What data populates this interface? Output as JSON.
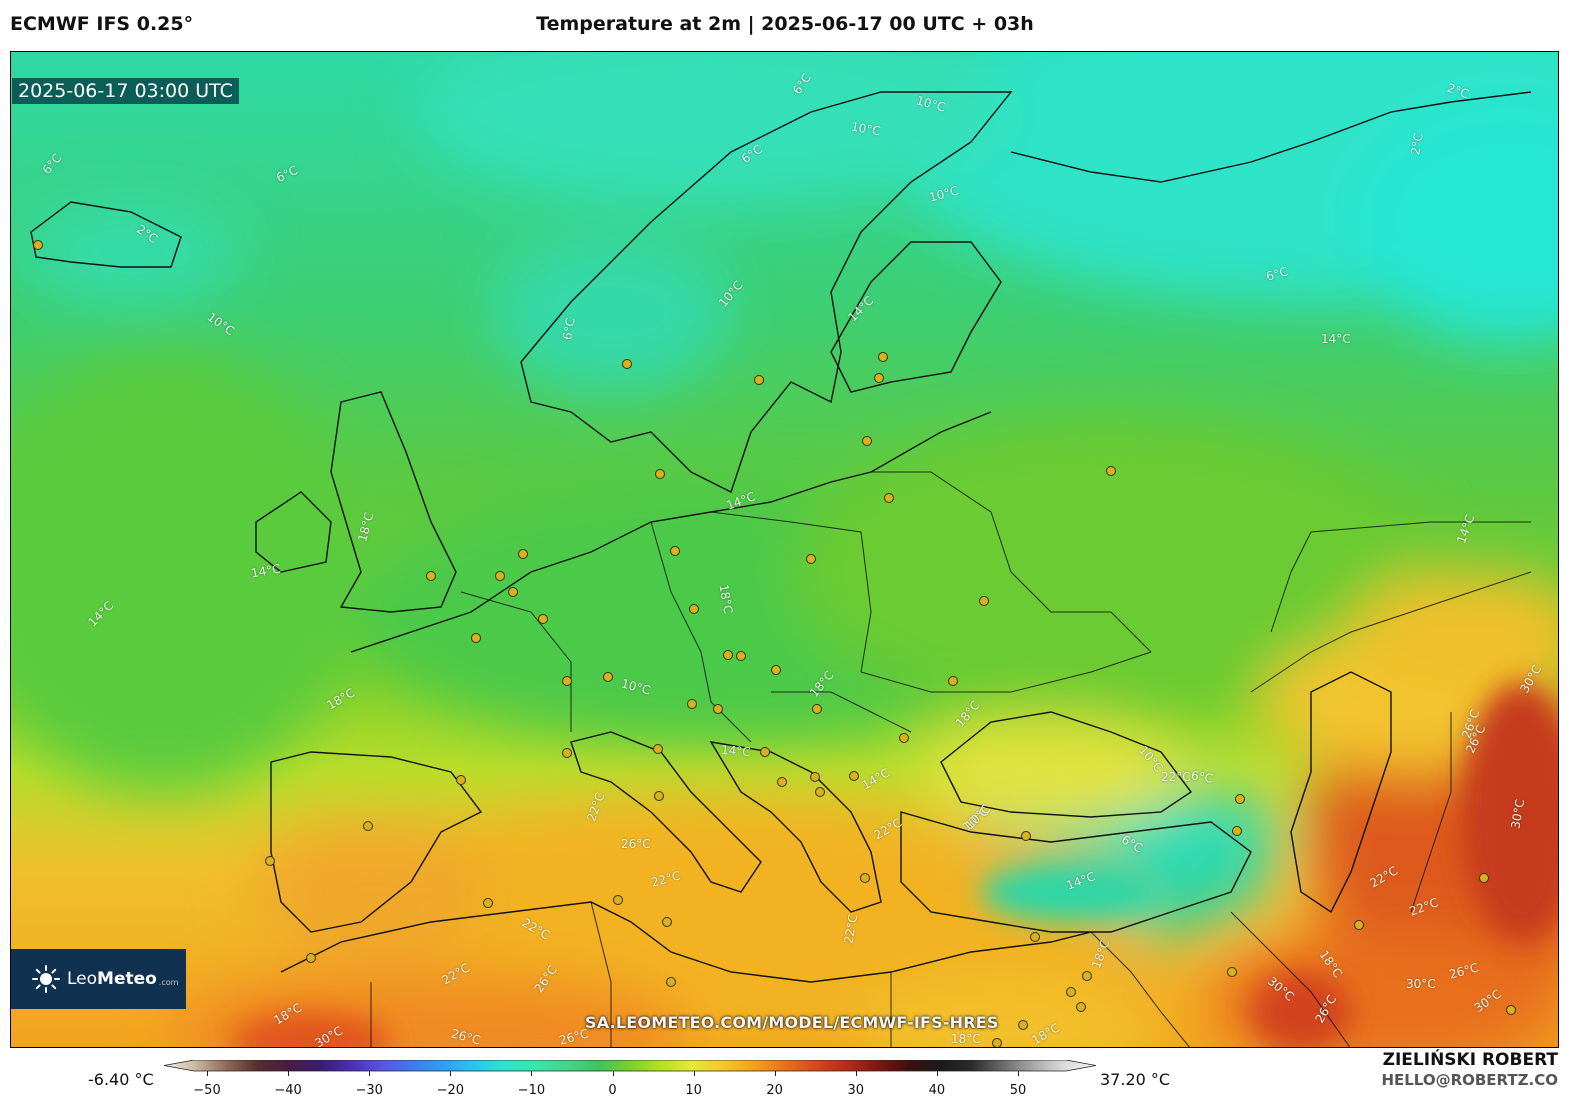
{
  "header": {
    "model": "ECMWF IFS 0.25°",
    "title": "Temperature at 2m | 2025-06-17 00 UTC + 03h"
  },
  "map": {
    "valid_time": "2025-06-17 03:00 UTC",
    "watermark": "SA.LEOMETEO.COM/MODEL/ECMWF-IFS-HRES",
    "contour_labels": [
      "6°C",
      "6°C",
      "2°C",
      "10°C",
      "10°C",
      "10°C",
      "6°C",
      "2°C",
      "2°C",
      "6°C",
      "6°C",
      "10°C",
      "10°C",
      "6°C",
      "14°C",
      "14°C",
      "14°C",
      "14°C",
      "18°C",
      "14°C",
      "10°C",
      "18°C",
      "18°C",
      "10°C",
      "6°C",
      "10°C",
      "14°C",
      "14°C",
      "18°C",
      "18°C",
      "22°C",
      "26°C",
      "22°C",
      "22°C",
      "22°C",
      "10°C",
      "6°C",
      "14°C",
      "22°C",
      "26°C",
      "30°C",
      "30°C",
      "22°C",
      "22°C",
      "26°C",
      "18°C",
      "18°C",
      "30°C",
      "26°C",
      "30°C",
      "26°C",
      "30°C",
      "22°C",
      "22°C",
      "18°C",
      "26°C",
      "30°C",
      "18°C",
      "26°C",
      "26°C",
      "18°C",
      "14°C"
    ]
  },
  "brand": {
    "name_light": "Leo",
    "name_bold": "Meteo",
    "domain": ".com"
  },
  "colorbar": {
    "min_label": "-6.40 °C",
    "max_label": "37.20 °C",
    "ticks": [
      "−50",
      "−40",
      "−30",
      "−20",
      "−10",
      "0",
      "10",
      "20",
      "30",
      "40",
      "50"
    ],
    "range": [
      -55,
      55
    ],
    "colors": {
      "stops": [
        "#f3eee3",
        "#c9b9a3",
        "#8f6a57",
        "#5a2e2e",
        "#4a1c44",
        "#3b1b6e",
        "#4b2db6",
        "#5b53e2",
        "#3f7af0",
        "#2f9ff3",
        "#28c6f0",
        "#2ee3cc",
        "#38e6a7",
        "#44d48a",
        "#3ec35e",
        "#79d22b",
        "#b5e21d",
        "#e6e83a",
        "#f6c62a",
        "#f3a11c",
        "#e9721a",
        "#d8461c",
        "#b72a19",
        "#7d1712",
        "#3d0e0e",
        "#1a1a1a",
        "#2b2b2b",
        "#6b6b6b",
        "#a9a9a9",
        "#dcdcdc",
        "#f4f4f4"
      ]
    }
  },
  "credit": {
    "author": "ZIELIŃSKI ROBERT",
    "email": "HELLO@ROBERTZ.CO"
  }
}
